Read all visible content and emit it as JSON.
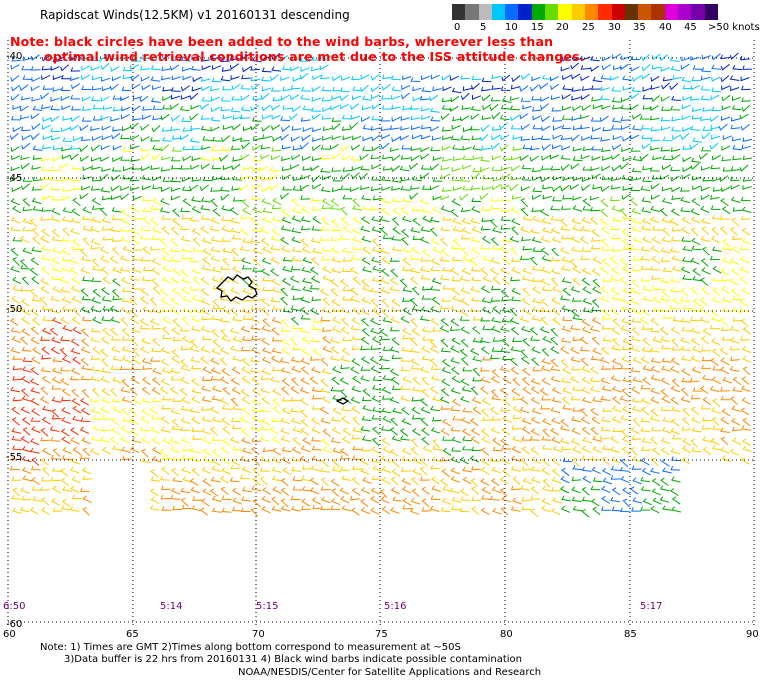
{
  "header": {
    "title": "Rapidscat Winds(12.5KM) v1 20160131 descending",
    "note_line1": "Note: black circles have been added to the wind barbs, wherever less than",
    "note_line2": "optimal wind retrieval conditions are met due to the ISS attitude changes."
  },
  "legend": {
    "colors": [
      "#333333",
      "#777777",
      "#bbbbbb",
      "#00c8ff",
      "#0a6cff",
      "#0022cc",
      "#00aa00",
      "#66dd00",
      "#ffff00",
      "#ffcc00",
      "#ff8800",
      "#ff2a00",
      "#cc0000",
      "#663300",
      "#cc5500",
      "#aa3300",
      "#dd00dd",
      "#aa00cc",
      "#7700aa",
      "#330066"
    ],
    "labels": [
      "0",
      "5",
      "10",
      "15",
      "20",
      "25",
      "30",
      "35",
      "40",
      "45",
      ">50 knots"
    ]
  },
  "map": {
    "lat_labels": [
      "-40",
      "-45",
      "-50",
      "-55",
      "-60"
    ],
    "lon_labels": [
      "60",
      "65",
      "70",
      "75",
      "80",
      "85",
      "90"
    ],
    "time_labels": [
      "6:50",
      "5:14",
      "5:15",
      "5:16",
      "5:17"
    ]
  },
  "footer": {
    "line1": "Note: 1) Times are GMT 2)Times along bottom correspond to measurement at ~50S",
    "line2": "3)Data buffer is 22 hrs from 20160131 4) Black wind barbs indicate possible contamination",
    "line3": "NOAA/NESDIS/Center for Satellite Applications and Research"
  }
}
